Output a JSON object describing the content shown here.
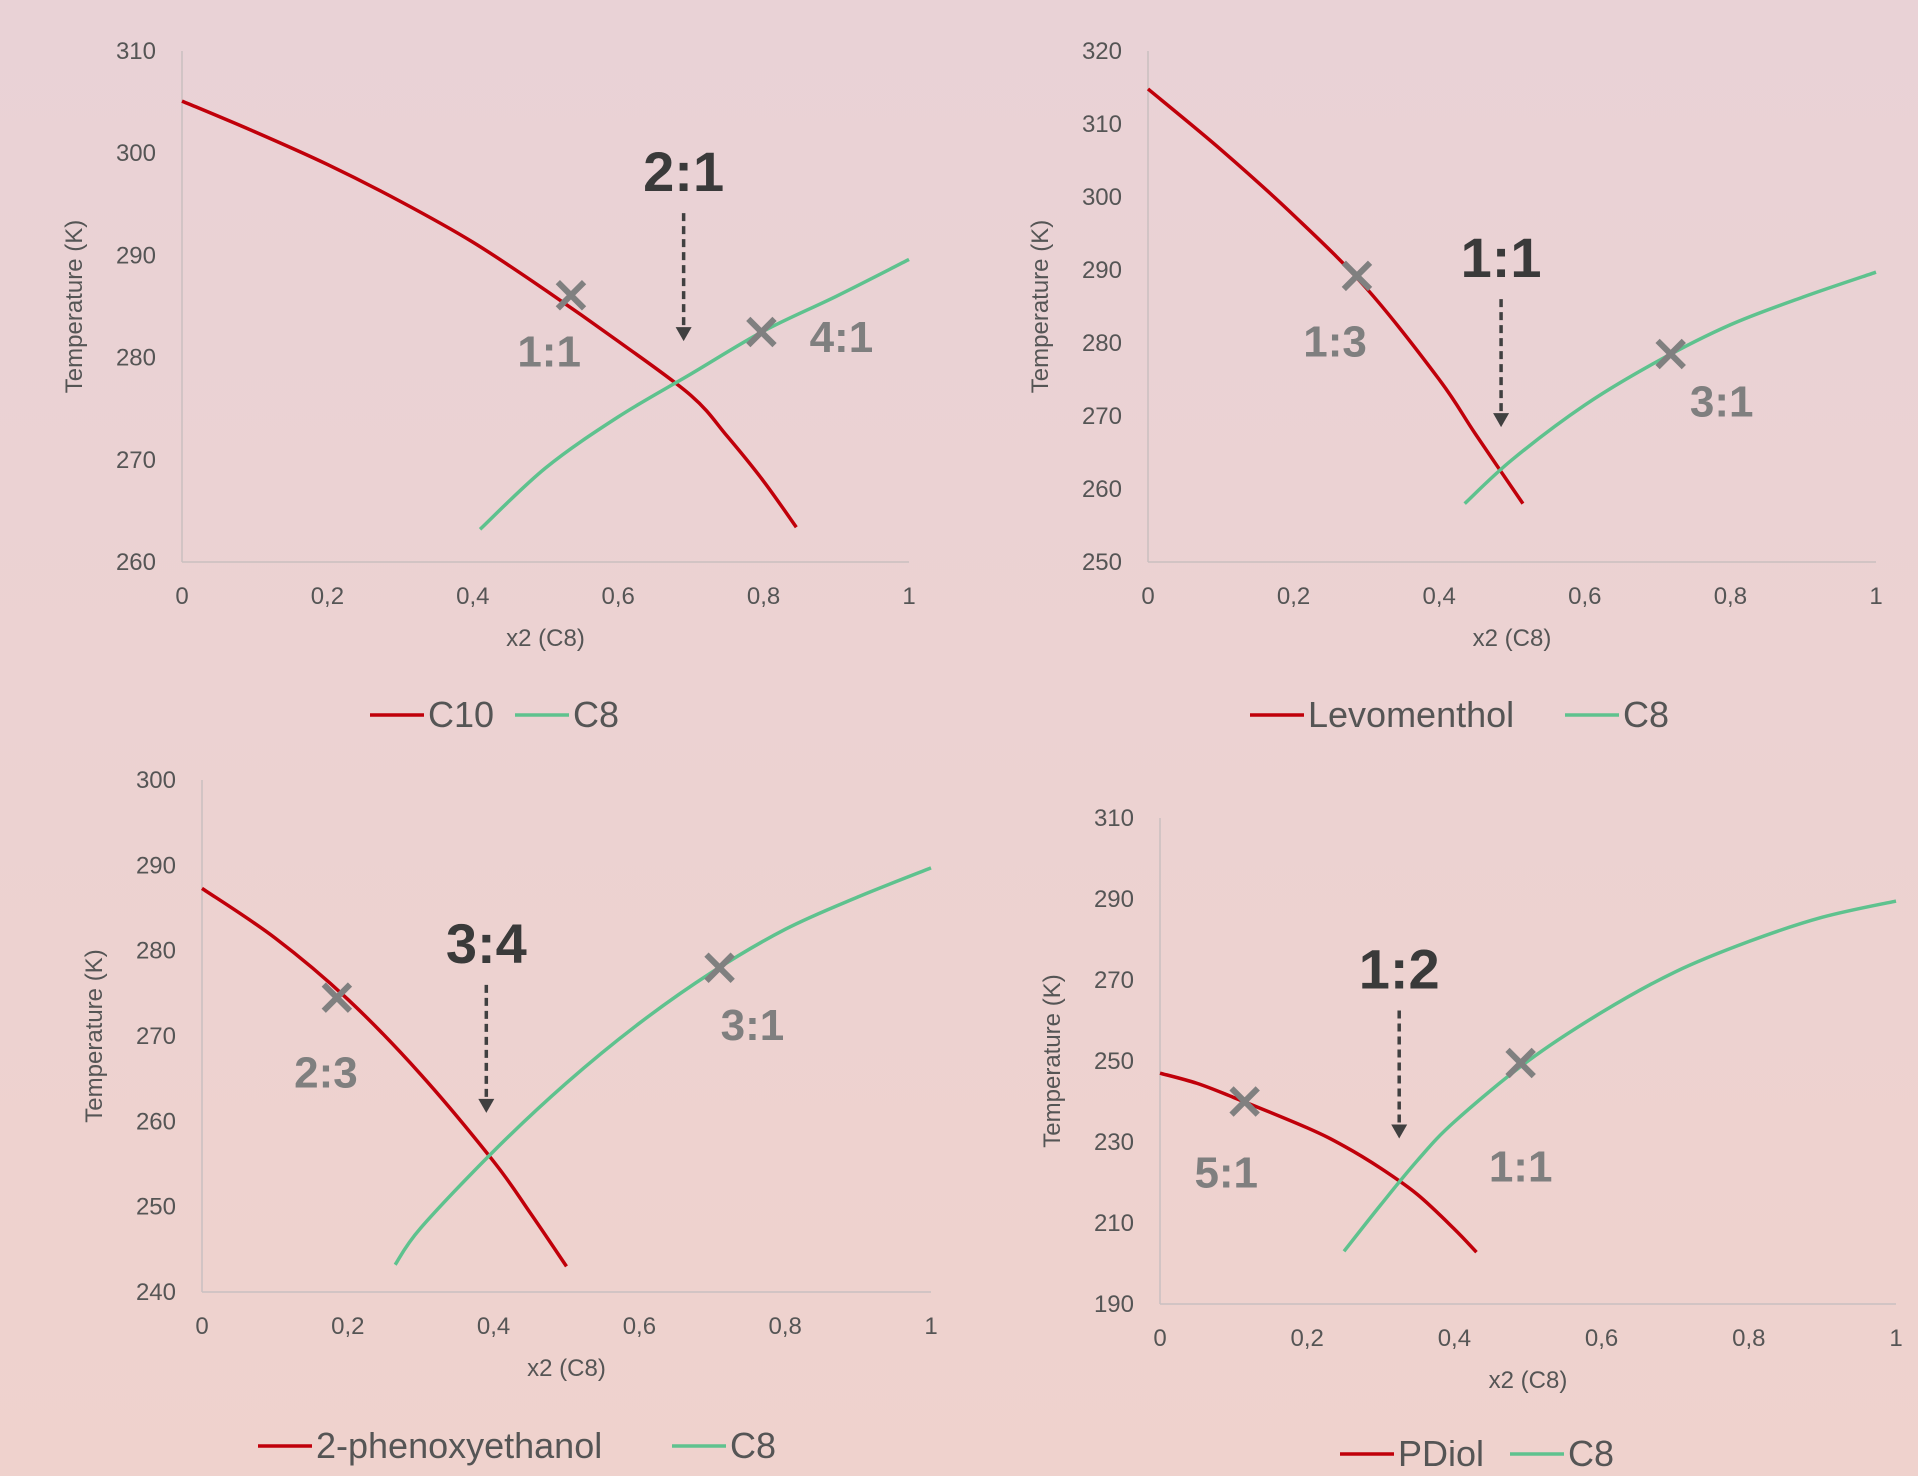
{
  "colors": {
    "red": "#c0000a",
    "green": "#5ec28e",
    "axis": "#c9c0c0",
    "tick_text": "#555555",
    "marker": "#808080",
    "big_ratio": "#3a3a3a",
    "small_ratio": "#7f7f7f",
    "arrow": "#404040"
  },
  "chart_data": [
    {
      "type": "line",
      "xlabel": "x2 (C8)",
      "ylabel": "Temperature (K)",
      "xlim": [
        0,
        1
      ],
      "ylim": [
        260,
        310
      ],
      "xticks": [
        "0",
        "0,2",
        "0,4",
        "0,6",
        "0,8",
        "1"
      ],
      "yticks": [
        "260",
        "270",
        "280",
        "290",
        "300",
        "310"
      ],
      "series": [
        {
          "name": "C10",
          "color": "red",
          "x": [
            0,
            0.1,
            0.2,
            0.3,
            0.4,
            0.5,
            0.6,
            0.7,
            0.75,
            0.8,
            0.845
          ],
          "y": [
            305.1,
            302.1,
            298.9,
            295.3,
            291.3,
            286.6,
            281.6,
            276.3,
            272.3,
            267.9,
            263.4
          ]
        },
        {
          "name": "C8",
          "color": "green",
          "x": [
            0.41,
            0.5,
            0.6,
            0.7,
            0.8,
            0.9,
            1.0
          ],
          "y": [
            263.2,
            269.2,
            274.2,
            278.4,
            282.6,
            286.0,
            289.6
          ]
        }
      ],
      "markers": [
        {
          "x": 0.535,
          "y": 286.1,
          "label": "1:1",
          "label_dx": -0.03,
          "label_dy": -5.5
        },
        {
          "x": 0.797,
          "y": 282.5,
          "label": "4:1",
          "label_dx": 0.11,
          "label_dy": -0.5
        }
      ],
      "eutectic": {
        "label": "2:1",
        "x": 0.69,
        "y": 277.7
      }
    },
    {
      "type": "line",
      "xlabel": "x2 (C8)",
      "ylabel": "Temperature (K)",
      "xlim": [
        0,
        1
      ],
      "ylim": [
        250,
        320
      ],
      "xticks": [
        "0",
        "0,2",
        "0,4",
        "0,6",
        "0,8",
        "1"
      ],
      "yticks": [
        "250",
        "260",
        "270",
        "280",
        "290",
        "300",
        "310",
        "320"
      ],
      "series": [
        {
          "name": "Levomenthol",
          "color": "red",
          "x": [
            0,
            0.1,
            0.2,
            0.3,
            0.4,
            0.45,
            0.515
          ],
          "y": [
            314.8,
            306.5,
            297.5,
            287.5,
            275.0,
            267.5,
            258.0
          ]
        },
        {
          "name": "C8",
          "color": "green",
          "x": [
            0.435,
            0.5,
            0.6,
            0.7,
            0.8,
            0.9,
            1.0
          ],
          "y": [
            258.0,
            264.0,
            271.5,
            277.5,
            282.5,
            286.3,
            289.7
          ]
        }
      ],
      "markers": [
        {
          "x": 0.287,
          "y": 289.2,
          "label": "1:3",
          "label_dx": -0.03,
          "label_dy": -9.0
        },
        {
          "x": 0.718,
          "y": 278.5,
          "label": "3:1",
          "label_dx": 0.07,
          "label_dy": -6.5
        }
      ],
      "eutectic": {
        "label": "1:1",
        "x": 0.485,
        "y": 263.0
      }
    },
    {
      "type": "line",
      "xlabel": "x2 (C8)",
      "ylabel": "Temperature (K)",
      "xlim": [
        0,
        1
      ],
      "ylim": [
        240,
        300
      ],
      "xticks": [
        "0",
        "0,2",
        "0,4",
        "0,6",
        "0,8",
        "1"
      ],
      "yticks": [
        "240",
        "250",
        "260",
        "270",
        "280",
        "290",
        "300"
      ],
      "series": [
        {
          "name": "2-phenoxyethanol",
          "color": "red",
          "x": [
            0,
            0.1,
            0.2,
            0.3,
            0.4,
            0.45,
            0.5
          ],
          "y": [
            287.3,
            281.5,
            274.3,
            265.5,
            255.3,
            249.3,
            243.0
          ]
        },
        {
          "name": "C8",
          "color": "green",
          "x": [
            0.265,
            0.3,
            0.4,
            0.5,
            0.6,
            0.7,
            0.8,
            0.9,
            1.0
          ],
          "y": [
            243.2,
            247.5,
            256.5,
            264.5,
            271.5,
            277.5,
            282.5,
            286.3,
            289.7
          ]
        }
      ],
      "markers": [
        {
          "x": 0.185,
          "y": 274.5,
          "label": "2:3",
          "label_dx": -0.015,
          "label_dy": -8.8
        },
        {
          "x": 0.71,
          "y": 278.0,
          "label": "3:1",
          "label_dx": 0.045,
          "label_dy": -6.7
        }
      ],
      "eutectic": {
        "label": "3:4",
        "x": 0.39,
        "y": 256.3
      }
    },
    {
      "type": "line",
      "xlabel": "x2 (C8)",
      "ylabel": "Temperature (K)",
      "xlim": [
        0,
        1
      ],
      "ylim": [
        190,
        310
      ],
      "yticks_values": [
        190,
        210,
        230,
        250,
        270,
        290,
        310
      ],
      "xticks": [
        "0",
        "0,2",
        "0,4",
        "0,6",
        "0,8",
        "1"
      ],
      "yticks": [
        "190",
        "210",
        "230",
        "250",
        "270",
        "290",
        "310"
      ],
      "series": [
        {
          "name": "PDiol",
          "color": "red",
          "x": [
            0,
            0.05,
            0.1,
            0.2,
            0.25,
            0.3,
            0.35,
            0.4,
            0.43
          ],
          "y": [
            247.0,
            244.5,
            241.0,
            233.5,
            229.0,
            223.5,
            217.0,
            208.5,
            202.8
          ]
        },
        {
          "name": "C8",
          "color": "green",
          "x": [
            0.25,
            0.3,
            0.35,
            0.4,
            0.5,
            0.6,
            0.7,
            0.8,
            0.9,
            1.0
          ],
          "y": [
            203.0,
            214.5,
            225.5,
            235.0,
            250.0,
            262.0,
            272.0,
            279.5,
            285.5,
            289.5
          ]
        }
      ],
      "markers": [
        {
          "x": 0.115,
          "y": 240.0,
          "label": "5:1",
          "label_dx": -0.025,
          "label_dy": -17.5
        },
        {
          "x": 0.49,
          "y": 249.5,
          "label": "1:1",
          "label_dx": 0.0,
          "label_dy": -25.5
        }
      ],
      "eutectic": {
        "label": "1:2",
        "x": 0.325,
        "y": 221.0
      }
    }
  ]
}
